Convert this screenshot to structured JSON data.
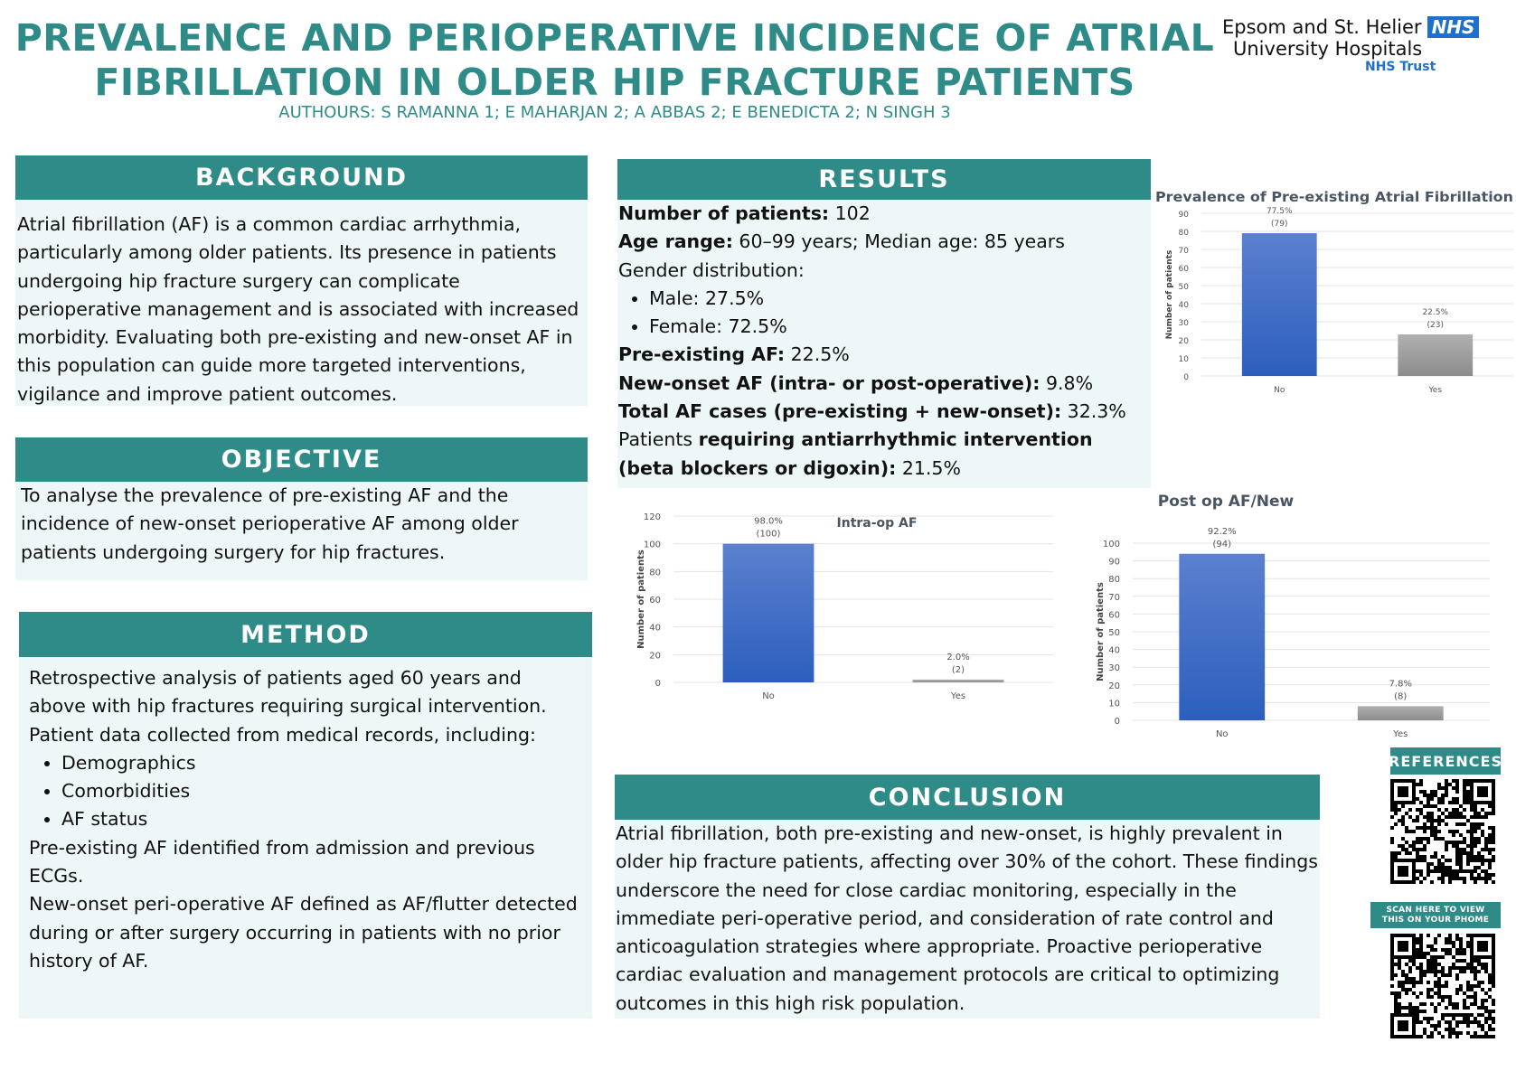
{
  "header": {
    "title_line1": "PREVALENCE AND PERIOPERATIVE INCIDENCE OF ATRIAL",
    "title_line2": "FIBRILLATION IN OLDER HIP FRACTURE PATIENTS",
    "authors": "AUTHOURS: S RAMANNA 1; E MAHARJAN 2; A ABBAS  2; E BENEDICTA 2; N SINGH 3"
  },
  "logo": {
    "line1": "Epsom and St. Helier",
    "badge": "NHS",
    "line2": "University Hospitals",
    "line3": "NHS Trust"
  },
  "background": {
    "heading": "BACKGROUND",
    "text": "Atrial fibrillation (AF) is a common cardiac arrhythmia, particularly among older patients. Its presence in patients undergoing hip fracture surgery can complicate perioperative management and is associated with increased morbidity. Evaluating both pre-existing and new-onset AF in this population can guide more targeted interventions, vigilance and improve patient outcomes."
  },
  "objective": {
    "heading": "OBJECTIVE",
    "text": "To analyse the prevalence of pre-existing AF and the incidence of new-onset perioperative AF among older patients undergoing surgery for hip fractures."
  },
  "method": {
    "heading": "METHOD",
    "intro": "Retrospective analysis of patients aged 60 years and above with hip fractures requiring surgical intervention. Patient data collected from medical records, including:",
    "items": [
      "Demographics",
      "Comorbidities",
      "AF status"
    ],
    "p2": "Pre-existing AF identified from admission and previous ECGs.",
    "p3": "New-onset peri-operative AF defined as AF/flutter detected during or after surgery occurring in patients with no prior history of AF."
  },
  "results": {
    "heading": "RESULTS",
    "patients_label": "Number of patients:",
    "patients_value": " 102",
    "age_label": "Age range:",
    "age_value": " 60–99 years; Median age: 85 years",
    "gender_label": "Gender distribution:",
    "gender_items": [
      "Male: 27.5%",
      "Female: 72.5%"
    ],
    "pre_label": "Pre-existing AF:",
    "pre_value": " 22.5%",
    "new_label": "New-onset AF (intra- or post-operative):",
    "new_value": "  9.8%",
    "total_label": "Total AF cases (pre-existing + new-onset):",
    "total_value": " 32.3%",
    "anti_prefix": " Patients ",
    "anti_label": "requiring antiarrhythmic intervention (beta blockers or digoxin):",
    "anti_value": "  21.5%"
  },
  "conclusion": {
    "heading": "CONCLUSION",
    "text": "Atrial fibrillation, both pre-existing and new-onset, is highly prevalent in older hip fracture patients, affecting over 30% of the cohort. These findings underscore the need for close cardiac monitoring, especially in the immediate peri-operative period, and consideration of rate control and anticoagulation strategies where appropriate. Proactive perioperative cardiac evaluation and management protocols are critical to optimizing outcomes in this high risk population."
  },
  "references": {
    "heading": "REFERENCES",
    "scan_label": "SCAN HERE TO VIEW THIS ON YOUR PHOME"
  },
  "colors": {
    "teal": "#2e8b87",
    "bar_no": "#3a6cc8",
    "bar_yes": "#9e9e9e"
  },
  "chart_data": [
    {
      "type": "bar",
      "title": "Prevalence of Pre-existing Atrial Fibrillation",
      "ylabel": "Number of patients",
      "categories": [
        "No",
        "Yes"
      ],
      "values": [
        79,
        23
      ],
      "data_labels": [
        [
          "77.5%",
          "(79)"
        ],
        [
          "22.5%",
          "(23)"
        ]
      ],
      "ylim": [
        0,
        90
      ],
      "yticks": [
        0,
        10,
        20,
        30,
        40,
        50,
        60,
        70,
        80,
        90
      ],
      "grid": true
    },
    {
      "type": "bar",
      "title": "Intra-op AF",
      "ylabel": "Number of patients",
      "categories": [
        "No",
        "Yes"
      ],
      "values": [
        100,
        2
      ],
      "data_labels": [
        [
          "98.0%",
          "(100)"
        ],
        [
          "2.0%",
          "(2)"
        ]
      ],
      "ylim": [
        0,
        120
      ],
      "yticks": [
        0,
        20,
        40,
        60,
        80,
        100,
        120
      ],
      "grid": true
    },
    {
      "type": "bar",
      "title": "Post op AF/New",
      "ylabel": "Number of patients",
      "categories": [
        "No",
        "Yes"
      ],
      "values": [
        94,
        8
      ],
      "data_labels": [
        [
          "92.2%",
          "(94)"
        ],
        [
          "7.8%",
          "(8)"
        ]
      ],
      "ylim": [
        0,
        100
      ],
      "yticks": [
        0,
        10,
        20,
        30,
        40,
        50,
        60,
        70,
        80,
        90,
        100
      ],
      "grid": true
    }
  ]
}
